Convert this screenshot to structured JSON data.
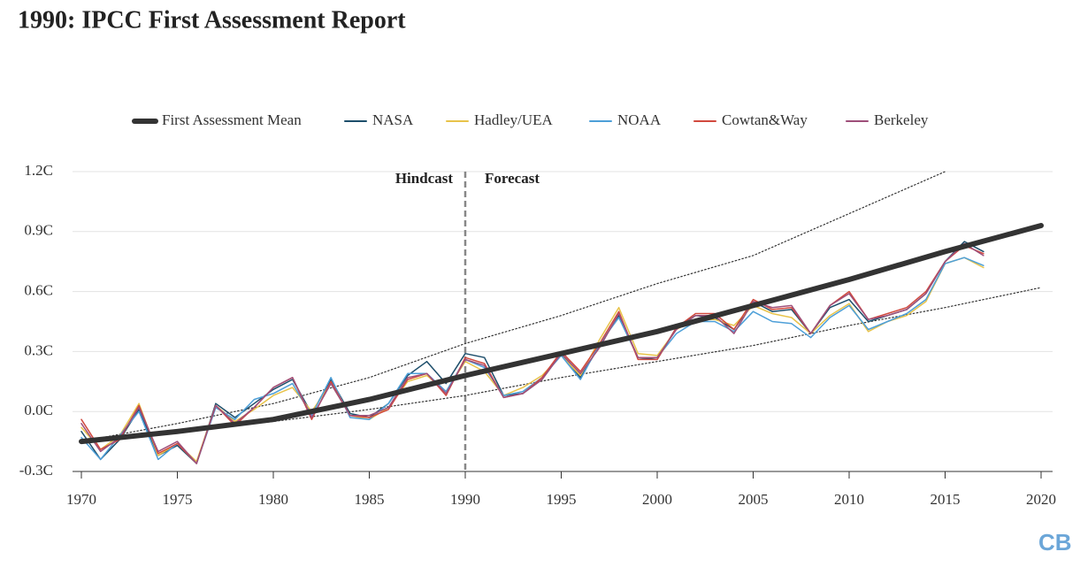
{
  "chart_data": {
    "type": "line",
    "title": "1990: IPCC First Assessment Report",
    "annotations": [
      "Hindcast",
      "Forecast"
    ],
    "divider": 1990,
    "logo": "CB",
    "xlim": [
      1970,
      2020
    ],
    "xticks": [
      1970,
      1975,
      1980,
      1985,
      1990,
      1995,
      2000,
      2005,
      2010,
      2015,
      2020
    ],
    "ylim": [
      -0.3,
      1.2
    ],
    "yticks": [
      {
        "value": -0.3,
        "label": "-0.3C"
      },
      {
        "value": 0,
        "label": "0.0C"
      },
      {
        "value": 0.3,
        "label": "0.3C"
      },
      {
        "value": 0.6,
        "label": "0.6C"
      },
      {
        "value": 0.9,
        "label": "0.9C"
      },
      {
        "value": 1.2,
        "label": "1.2C"
      }
    ],
    "grid": true,
    "x": [
      1970,
      1971,
      1972,
      1973,
      1974,
      1975,
      1976,
      1977,
      1978,
      1979,
      1980,
      1981,
      1982,
      1983,
      1984,
      1985,
      1986,
      1987,
      1988,
      1989,
      1990,
      1991,
      1992,
      1993,
      1994,
      1995,
      1996,
      1997,
      1998,
      1999,
      2000,
      2001,
      2002,
      2003,
      2004,
      2005,
      2006,
      2007,
      2008,
      2009,
      2010,
      2011,
      2012,
      2013,
      2014,
      2015,
      2016,
      2017
    ],
    "series": [
      {
        "name": "First Assessment Mean",
        "color": "#333333",
        "width": 6,
        "x": [
          1970,
          1975,
          1980,
          1985,
          1990,
          1995,
          2000,
          2005,
          2010,
          2015,
          2020
        ],
        "values": [
          -0.15,
          -0.1,
          -0.04,
          0.06,
          0.18,
          0.29,
          0.4,
          0.53,
          0.66,
          0.8,
          0.93
        ]
      },
      {
        "name": "NASA",
        "color": "#1d4e6b",
        "width": 1.5,
        "values": [
          -0.1,
          -0.24,
          -0.14,
          0.01,
          -0.22,
          -0.17,
          -0.26,
          0.04,
          -0.03,
          0.04,
          0.11,
          0.16,
          -0.01,
          0.16,
          -0.01,
          -0.03,
          0.04,
          0.18,
          0.25,
          0.14,
          0.29,
          0.27,
          0.08,
          0.09,
          0.16,
          0.29,
          0.17,
          0.33,
          0.48,
          0.27,
          0.26,
          0.42,
          0.48,
          0.47,
          0.41,
          0.55,
          0.5,
          0.51,
          0.39,
          0.52,
          0.56,
          0.45,
          0.48,
          0.51,
          0.59,
          0.75,
          0.85,
          0.8
        ]
      },
      {
        "name": "Hadley/UEA",
        "color": "#e8c34a",
        "width": 1.5,
        "values": [
          -0.08,
          -0.19,
          -0.12,
          0.04,
          -0.22,
          -0.16,
          -0.25,
          0.03,
          -0.05,
          0.01,
          0.08,
          0.12,
          0.0,
          0.14,
          -0.02,
          -0.04,
          0.02,
          0.15,
          0.18,
          0.1,
          0.25,
          0.2,
          0.08,
          0.12,
          0.18,
          0.28,
          0.18,
          0.36,
          0.52,
          0.29,
          0.28,
          0.41,
          0.46,
          0.46,
          0.43,
          0.53,
          0.49,
          0.47,
          0.39,
          0.48,
          0.54,
          0.4,
          0.45,
          0.48,
          0.55,
          0.74,
          0.77,
          0.72
        ]
      },
      {
        "name": "NOAA",
        "color": "#4d9fd8",
        "width": 1.5,
        "values": [
          -0.13,
          -0.24,
          -0.12,
          0.0,
          -0.24,
          -0.16,
          -0.26,
          0.02,
          -0.04,
          0.06,
          0.09,
          0.14,
          -0.02,
          0.17,
          -0.03,
          -0.04,
          0.04,
          0.19,
          0.19,
          0.1,
          0.26,
          0.22,
          0.08,
          0.1,
          0.17,
          0.28,
          0.16,
          0.34,
          0.47,
          0.27,
          0.27,
          0.39,
          0.45,
          0.45,
          0.4,
          0.5,
          0.45,
          0.44,
          0.37,
          0.47,
          0.53,
          0.41,
          0.45,
          0.49,
          0.56,
          0.74,
          0.77,
          0.73
        ]
      },
      {
        "name": "Cowtan&Way",
        "color": "#d1493e",
        "width": 1.5,
        "values": [
          -0.04,
          -0.19,
          -0.14,
          0.03,
          -0.21,
          -0.16,
          -0.26,
          0.03,
          -0.07,
          0.02,
          0.12,
          0.17,
          -0.04,
          0.15,
          -0.02,
          -0.03,
          0.01,
          0.16,
          0.19,
          0.08,
          0.27,
          0.24,
          0.07,
          0.09,
          0.17,
          0.3,
          0.2,
          0.34,
          0.5,
          0.26,
          0.26,
          0.42,
          0.49,
          0.49,
          0.41,
          0.56,
          0.51,
          0.52,
          0.39,
          0.53,
          0.6,
          0.46,
          0.49,
          0.52,
          0.6,
          0.75,
          0.83,
          0.79
        ]
      },
      {
        "name": "Berkeley",
        "color": "#9e4f7a",
        "width": 1.5,
        "values": [
          -0.06,
          -0.2,
          -0.13,
          0.02,
          -0.2,
          -0.15,
          -0.26,
          0.03,
          -0.06,
          0.02,
          0.12,
          0.17,
          -0.03,
          0.14,
          -0.02,
          -0.02,
          0.02,
          0.17,
          0.19,
          0.09,
          0.26,
          0.23,
          0.07,
          0.09,
          0.16,
          0.29,
          0.19,
          0.32,
          0.49,
          0.27,
          0.27,
          0.41,
          0.48,
          0.48,
          0.39,
          0.55,
          0.52,
          0.53,
          0.39,
          0.53,
          0.59,
          0.46,
          0.48,
          0.51,
          0.59,
          0.75,
          0.84,
          0.78
        ]
      }
    ],
    "bounds": [
      {
        "color": "#333333",
        "style": "dotted",
        "x": [
          1970,
          1975,
          1980,
          1985,
          1990,
          1995,
          2000,
          2005,
          2010,
          2015,
          2020
        ],
        "values": [
          -0.15,
          -0.06,
          0.04,
          0.17,
          0.34,
          0.48,
          0.64,
          0.78,
          0.99,
          1.2,
          null
        ]
      },
      {
        "color": "#333333",
        "style": "dotted",
        "x": [
          1970,
          1975,
          1980,
          1985,
          1990,
          1995,
          2000,
          2005,
          2010,
          2015,
          2020
        ],
        "values": [
          -0.15,
          -0.1,
          -0.05,
          0.01,
          0.08,
          0.17,
          0.25,
          0.33,
          0.43,
          0.52,
          0.62
        ]
      }
    ]
  }
}
